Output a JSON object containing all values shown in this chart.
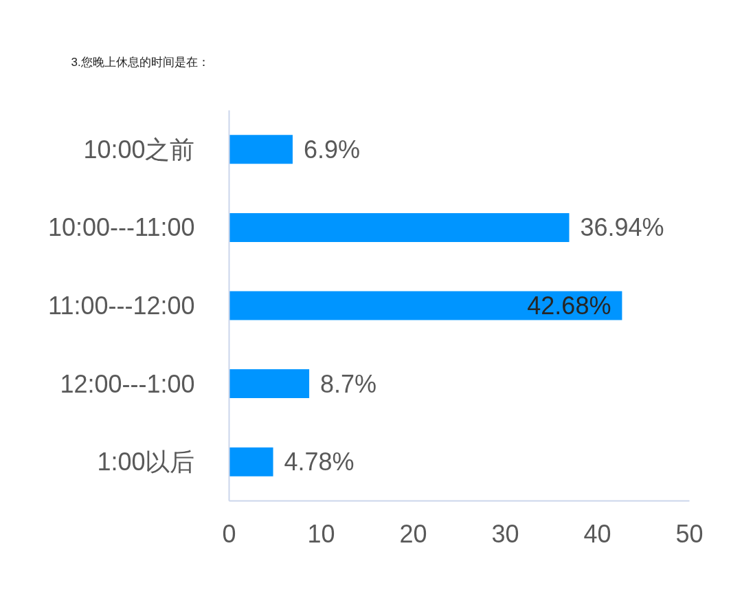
{
  "chart_data": {
    "type": "bar",
    "orientation": "horizontal",
    "title": "3.您晚上休息的时间是在：",
    "categories": [
      "10:00之前",
      "10:00---11:00",
      "11:00---12:00",
      "12:00---1:00",
      "1:00以后"
    ],
    "values": [
      6.9,
      36.94,
      42.68,
      8.7,
      4.78
    ],
    "value_labels": [
      "6.9%",
      "36.94%",
      "42.68%",
      "8.7%",
      "4.78%"
    ],
    "color": "#0095ff",
    "xlim": [
      0,
      50
    ],
    "xticks": [
      0,
      10,
      20,
      30,
      40,
      50
    ],
    "grid": false
  }
}
